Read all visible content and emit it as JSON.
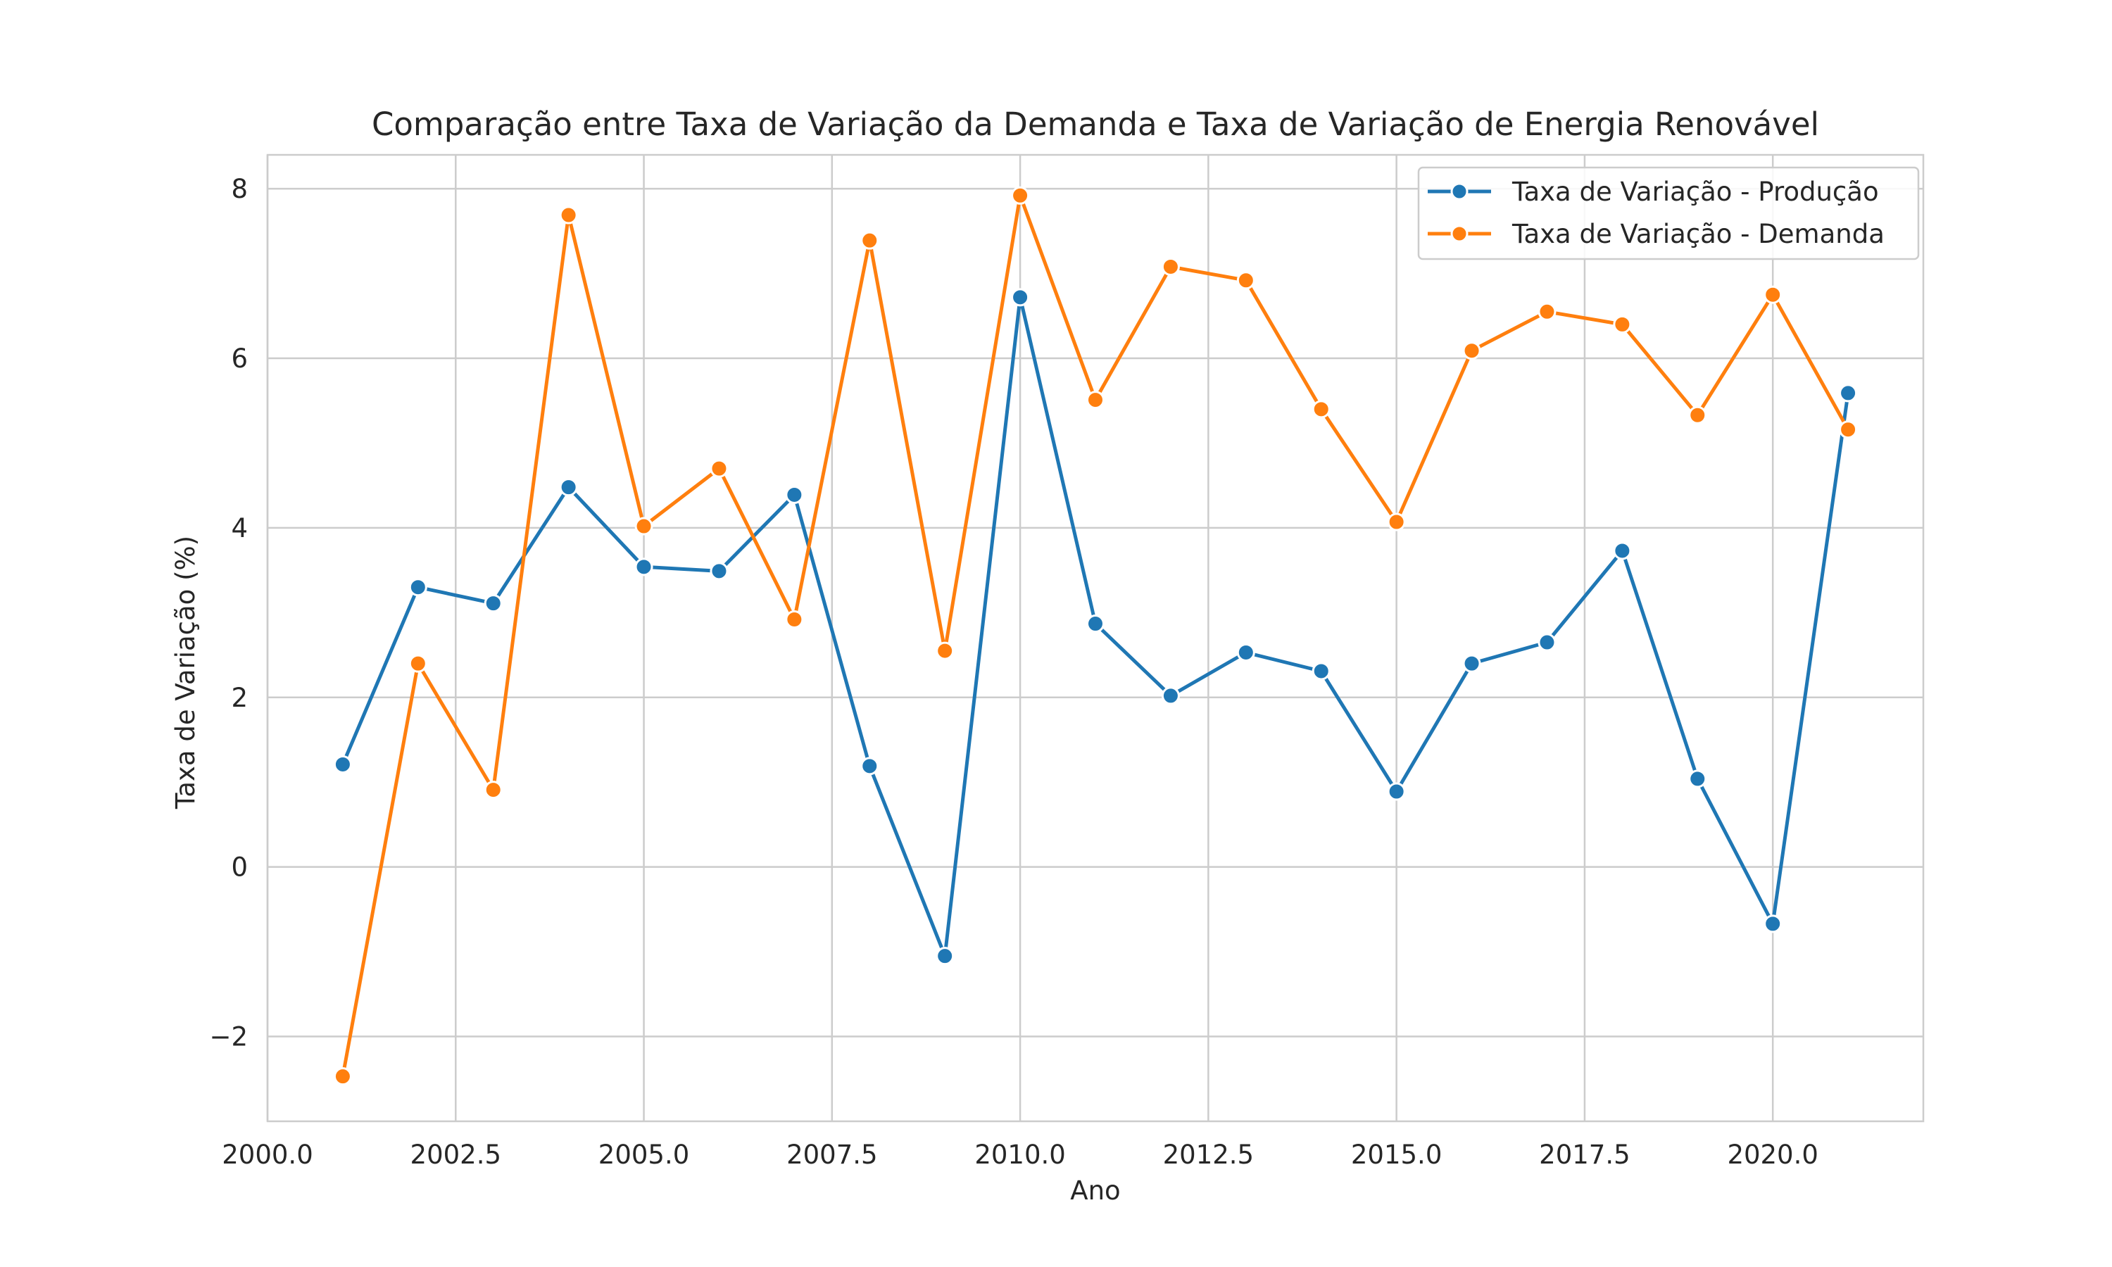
{
  "chart_data": {
    "type": "line",
    "title": "Comparação entre Taxa de Variação da Demanda e Taxa de Variação de Energia Renovável",
    "xlabel": "Ano",
    "ylabel": "Taxa de Variação (%)",
    "xlim": [
      2000,
      2022
    ],
    "ylim": [
      -3.0,
      8.4
    ],
    "xticks": [
      2000.0,
      2002.5,
      2005.0,
      2007.5,
      2010.0,
      2012.5,
      2015.0,
      2017.5,
      2020.0
    ],
    "xtick_labels": [
      "2000.0",
      "2002.5",
      "2005.0",
      "2007.5",
      "2010.0",
      "2012.5",
      "2015.0",
      "2017.5",
      "2020.0"
    ],
    "yticks": [
      -2,
      0,
      2,
      4,
      6,
      8
    ],
    "ytick_labels": [
      "−2",
      "0",
      "2",
      "4",
      "6",
      "8"
    ],
    "grid": true,
    "legend_position": "top-right",
    "x": [
      2001,
      2002,
      2003,
      2004,
      2005,
      2006,
      2007,
      2008,
      2009,
      2010,
      2011,
      2012,
      2013,
      2014,
      2015,
      2016,
      2017,
      2018,
      2019,
      2020,
      2021
    ],
    "series": [
      {
        "name": "Taxa de Variação - Produção",
        "color": "#1f77b4",
        "values": [
          1.21,
          3.3,
          3.11,
          4.48,
          3.54,
          3.49,
          4.39,
          1.19,
          -1.05,
          6.72,
          2.87,
          2.02,
          2.53,
          2.31,
          0.89,
          2.4,
          2.65,
          3.73,
          1.04,
          -0.67,
          5.59
        ]
      },
      {
        "name": "Taxa de Variação - Demanda",
        "color": "#ff7f0e",
        "values": [
          -2.47,
          2.4,
          0.91,
          7.69,
          4.02,
          4.7,
          2.92,
          7.39,
          2.55,
          7.92,
          5.51,
          7.08,
          6.92,
          5.4,
          4.07,
          6.09,
          6.55,
          6.4,
          5.33,
          6.75,
          5.16
        ]
      }
    ]
  }
}
